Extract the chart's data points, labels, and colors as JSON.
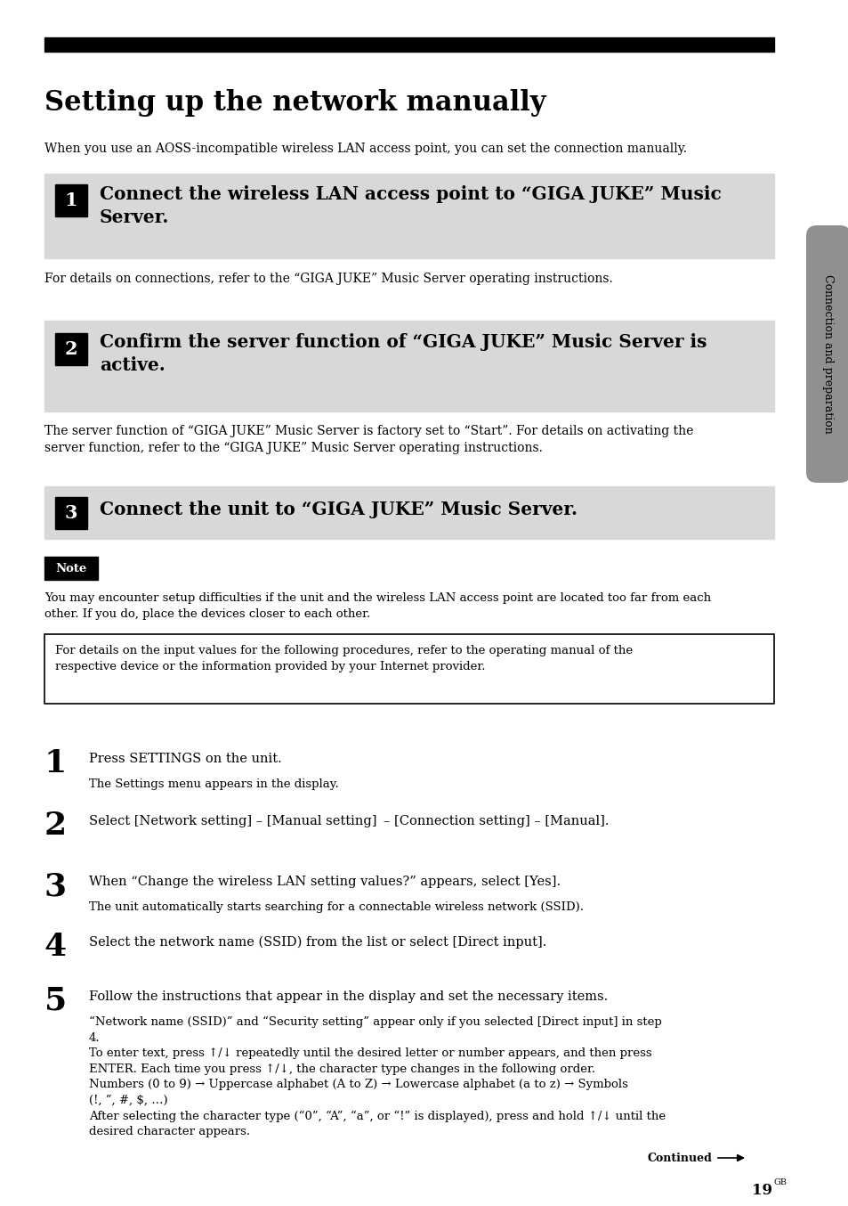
{
  "bg_color": "#ffffff",
  "page_width": 9.54,
  "page_height": 13.54,
  "title": "Setting up the network manually",
  "intro_text": "When you use an AOSS-incompatible wireless LAN access point, you can set the connection manually.",
  "step_boxes": [
    {
      "number": "1",
      "text": "Connect the wireless LAN access point to “GIGA JUKE” Music\nServer.",
      "bg": "#d8d8d8"
    },
    {
      "number": "2",
      "text": "Confirm the server function of “GIGA JUKE” Music Server is\nactive.",
      "bg": "#d8d8d8"
    },
    {
      "number": "3",
      "text": "Connect the unit to “GIGA JUKE” Music Server.",
      "bg": "#d8d8d8"
    }
  ],
  "after_box1": "For details on connections, refer to the “GIGA JUKE” Music Server operating instructions.",
  "after_box2": "The server function of “GIGA JUKE” Music Server is factory set to “Start”. For details on activating the\nserver function, refer to the “GIGA JUKE” Music Server operating instructions.",
  "note_text": "You may encounter setup difficulties if the unit and the wireless LAN access point are located too far from each\nother. If you do, place the devices closer to each other.",
  "box_note_text": "For details on the input values for the following procedures, refer to the operating manual of the\nrespective device or the information provided by your Internet provider.",
  "numbered_steps": [
    {
      "num": "1",
      "main": "Press SETTINGS on the unit.",
      "sub": "The Settings menu appears in the display."
    },
    {
      "num": "2",
      "main": "Select [Network setting] – [Manual setting]  – [Connection setting] – [Manual].",
      "sub": ""
    },
    {
      "num": "3",
      "main": "When “Change the wireless LAN setting values?” appears, select [Yes].",
      "sub": "The unit automatically starts searching for a connectable wireless network (SSID)."
    },
    {
      "num": "4",
      "main": "Select the network name (SSID) from the list or select [Direct input].",
      "sub": ""
    },
    {
      "num": "5",
      "main": "Follow the instructions that appear in the display and set the necessary items.",
      "sub": "“Network name (SSID)” and “Security setting” appear only if you selected [Direct input] in step\n4.\nTo enter text, press ↑/↓ repeatedly until the desired letter or number appears, and then press\nENTER. Each time you press ↑/↓, the character type changes in the following order.\nNumbers (0 to 9) → Uppercase alphabet (A to Z) → Lowercase alphabet (a to z) → Symbols\n(!, ”, #, $, …)\nAfter selecting the character type (“0”, “A”, “a”, or “!” is displayed), press and hold ↑/↓ until the\ndesired character appears."
    }
  ],
  "sidebar_text": "Connection and preparation",
  "continued_text": "Continued",
  "page_num": "19",
  "page_suffix": "GB",
  "top_bar_color": "#000000",
  "number_box_color": "#000000",
  "number_text_color": "#ffffff",
  "step_bg_color": "#d8d8d8",
  "sidebar_color": "#909090"
}
